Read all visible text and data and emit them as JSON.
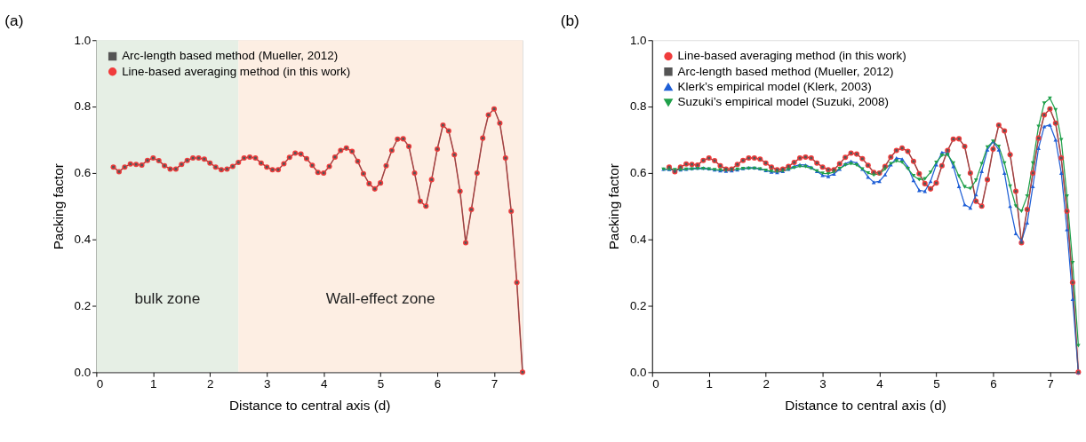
{
  "chart_data": [
    {
      "type": "line",
      "title": "(a)",
      "xlabel": "Distance to central axis (d)",
      "ylabel": "Packing factor",
      "xlim": [
        0,
        7.5
      ],
      "ylim": [
        0,
        1
      ],
      "xticks": [
        0,
        1,
        2,
        3,
        4,
        5,
        6,
        7
      ],
      "yticks": [
        {
          "value": 0,
          "label": "0.0"
        },
        {
          "value": 0.2,
          "label": "0.2"
        },
        {
          "value": 0.4,
          "label": "0.4"
        },
        {
          "value": 0.6,
          "label": "0.6"
        },
        {
          "value": 0.8,
          "label": "0.8"
        },
        {
          "value": 1,
          "label": "1.0"
        }
      ],
      "grid": false,
      "legend": "top left",
      "line_style": "solid",
      "x": [
        0.3,
        0.4,
        0.5,
        0.6,
        0.7,
        0.8,
        0.9,
        1.0,
        1.1,
        1.2,
        1.3,
        1.4,
        1.5,
        1.6,
        1.7,
        1.8,
        1.9,
        2.0,
        2.1,
        2.2,
        2.3,
        2.4,
        2.5,
        2.6,
        2.7,
        2.8,
        2.9,
        3.0,
        3.1,
        3.2,
        3.3,
        3.4,
        3.5,
        3.6,
        3.7,
        3.8,
        3.9,
        4.0,
        4.1,
        4.2,
        4.3,
        4.4,
        4.5,
        4.6,
        4.7,
        4.8,
        4.9,
        5.0,
        5.1,
        5.2,
        5.3,
        5.4,
        5.5,
        5.6,
        5.7,
        5.8,
        5.9,
        6.0,
        6.1,
        6.2,
        6.3,
        6.4,
        6.5,
        6.6,
        6.7,
        6.8,
        6.9,
        7.0,
        7.1,
        7.2,
        7.3,
        7.4,
        7.5
      ],
      "bands": [
        {
          "axis": "x",
          "from": 0,
          "to": 2.5,
          "label": "bulk zone",
          "color": "#e6efe5"
        },
        {
          "axis": "x",
          "from": 2.5,
          "to": 7.5,
          "label": "Wall-effect zone",
          "color": "#fdeee3"
        }
      ],
      "series": [
        {
          "name": "Arc-length based method (Mueller, 2012)",
          "color": "#555555",
          "marker": "square",
          "values": [
            0.618,
            0.604,
            0.618,
            0.627,
            0.626,
            0.624,
            0.638,
            0.645,
            0.637,
            0.622,
            0.612,
            0.612,
            0.626,
            0.638,
            0.645,
            0.645,
            0.642,
            0.63,
            0.618,
            0.61,
            0.612,
            0.62,
            0.632,
            0.645,
            0.648,
            0.645,
            0.63,
            0.618,
            0.61,
            0.61,
            0.628,
            0.647,
            0.66,
            0.657,
            0.643,
            0.623,
            0.602,
            0.6,
            0.62,
            0.648,
            0.668,
            0.675,
            0.665,
            0.635,
            0.598,
            0.568,
            0.552,
            0.57,
            0.622,
            0.668,
            0.702,
            0.703,
            0.68,
            0.6,
            0.515,
            0.5,
            0.58,
            0.672,
            0.744,
            0.727,
            0.655,
            0.545,
            0.39,
            0.49,
            0.6,
            0.705,
            0.775,
            0.793,
            0.75,
            0.645,
            0.485,
            0.27,
            0.0
          ]
        },
        {
          "name": "Line-based averaging method (in this work)",
          "color": "#f03c3c",
          "marker": "circle",
          "values": [
            0.618,
            0.604,
            0.618,
            0.627,
            0.626,
            0.624,
            0.638,
            0.645,
            0.637,
            0.622,
            0.612,
            0.612,
            0.626,
            0.638,
            0.645,
            0.645,
            0.642,
            0.63,
            0.618,
            0.61,
            0.612,
            0.62,
            0.632,
            0.645,
            0.648,
            0.645,
            0.63,
            0.618,
            0.61,
            0.61,
            0.628,
            0.647,
            0.66,
            0.657,
            0.643,
            0.623,
            0.602,
            0.6,
            0.62,
            0.648,
            0.668,
            0.675,
            0.665,
            0.635,
            0.598,
            0.568,
            0.552,
            0.57,
            0.622,
            0.668,
            0.702,
            0.703,
            0.68,
            0.6,
            0.515,
            0.5,
            0.58,
            0.672,
            0.744,
            0.727,
            0.655,
            0.545,
            0.39,
            0.49,
            0.6,
            0.705,
            0.775,
            0.793,
            0.75,
            0.645,
            0.485,
            0.27,
            0.0
          ]
        }
      ]
    },
    {
      "type": "line",
      "title": "(b)",
      "xlabel": "Distance to central axis (d)",
      "ylabel": "Packing factor",
      "xlim": [
        0,
        7.5
      ],
      "ylim": [
        0,
        1
      ],
      "xticks": [
        0,
        1,
        2,
        3,
        4,
        5,
        6,
        7
      ],
      "yticks": [
        {
          "value": 0,
          "label": "0.0"
        },
        {
          "value": 0.2,
          "label": "0.2"
        },
        {
          "value": 0.4,
          "label": "0.4"
        },
        {
          "value": 0.6,
          "label": "0.6"
        },
        {
          "value": 0.8,
          "label": "0.8"
        },
        {
          "value": 1,
          "label": "1.0"
        }
      ],
      "grid": false,
      "legend": "top left",
      "line_style": "solid",
      "x": [
        0.3,
        0.4,
        0.5,
        0.6,
        0.7,
        0.8,
        0.9,
        1.0,
        1.1,
        1.2,
        1.3,
        1.4,
        1.5,
        1.6,
        1.7,
        1.8,
        1.9,
        2.0,
        2.1,
        2.2,
        2.3,
        2.4,
        2.5,
        2.6,
        2.7,
        2.8,
        2.9,
        3.0,
        3.1,
        3.2,
        3.3,
        3.4,
        3.5,
        3.6,
        3.7,
        3.8,
        3.9,
        4.0,
        4.1,
        4.2,
        4.3,
        4.4,
        4.5,
        4.6,
        4.7,
        4.8,
        4.9,
        5.0,
        5.1,
        5.2,
        5.3,
        5.4,
        5.5,
        5.6,
        5.7,
        5.8,
        5.9,
        6.0,
        6.1,
        6.2,
        6.3,
        6.4,
        6.5,
        6.6,
        6.7,
        6.8,
        6.9,
        7.0,
        7.1,
        7.2,
        7.3,
        7.4,
        7.5
      ],
      "series": [
        {
          "name": "Line-based averaging method (in this work)",
          "color": "#f03c3c",
          "marker": "circle",
          "values": [
            0.618,
            0.604,
            0.618,
            0.627,
            0.626,
            0.624,
            0.638,
            0.645,
            0.637,
            0.622,
            0.612,
            0.612,
            0.626,
            0.638,
            0.645,
            0.645,
            0.642,
            0.63,
            0.618,
            0.61,
            0.612,
            0.62,
            0.632,
            0.645,
            0.648,
            0.645,
            0.63,
            0.618,
            0.61,
            0.61,
            0.628,
            0.647,
            0.66,
            0.657,
            0.643,
            0.623,
            0.602,
            0.6,
            0.62,
            0.648,
            0.668,
            0.675,
            0.665,
            0.635,
            0.598,
            0.568,
            0.552,
            0.57,
            0.622,
            0.668,
            0.702,
            0.703,
            0.68,
            0.6,
            0.515,
            0.5,
            0.58,
            0.672,
            0.744,
            0.727,
            0.655,
            0.545,
            0.39,
            0.49,
            0.6,
            0.705,
            0.775,
            0.793,
            0.75,
            0.645,
            0.485,
            0.27,
            0.0
          ]
        },
        {
          "name": "Arc-length based method (Mueller, 2012)",
          "color": "#555555",
          "marker": "square",
          "values": [
            0.618,
            0.604,
            0.618,
            0.627,
            0.626,
            0.624,
            0.638,
            0.645,
            0.637,
            0.622,
            0.612,
            0.612,
            0.626,
            0.638,
            0.645,
            0.645,
            0.642,
            0.63,
            0.618,
            0.61,
            0.612,
            0.62,
            0.632,
            0.645,
            0.648,
            0.645,
            0.63,
            0.618,
            0.61,
            0.61,
            0.628,
            0.647,
            0.66,
            0.657,
            0.643,
            0.623,
            0.602,
            0.6,
            0.62,
            0.648,
            0.668,
            0.675,
            0.665,
            0.635,
            0.598,
            0.568,
            0.552,
            0.57,
            0.622,
            0.668,
            0.702,
            0.703,
            0.68,
            0.6,
            0.515,
            0.5,
            0.58,
            0.672,
            0.744,
            0.727,
            0.655,
            0.545,
            0.39,
            0.49,
            0.6,
            0.705,
            0.775,
            0.793,
            0.75,
            0.645,
            0.485,
            0.27,
            0.0
          ]
        },
        {
          "name": "Klerk’s empirical model (Klerk, 2003)",
          "color": "#1f5fd6",
          "marker": "triangle",
          "x": [
            0.2,
            0.3,
            0.4,
            0.5,
            0.6,
            0.7,
            0.8,
            0.9,
            1.0,
            1.1,
            1.2,
            1.3,
            1.4,
            1.5,
            1.6,
            1.7,
            1.8,
            1.9,
            2.0,
            2.1,
            2.2,
            2.3,
            2.4,
            2.5,
            2.6,
            2.7,
            2.8,
            2.9,
            3.0,
            3.1,
            3.2,
            3.3,
            3.4,
            3.5,
            3.6,
            3.7,
            3.8,
            3.9,
            4.0,
            4.1,
            4.2,
            4.3,
            4.4,
            4.5,
            4.6,
            4.7,
            4.8,
            4.9,
            5.0,
            5.1,
            5.2,
            5.3,
            5.4,
            5.5,
            5.6,
            5.7,
            5.8,
            5.9,
            6.0,
            6.1,
            6.2,
            6.3,
            6.4,
            6.5,
            6.6,
            6.7,
            6.8,
            6.9,
            7.0,
            7.1,
            7.2,
            7.3,
            7.4,
            7.5
          ],
          "values": [
            0.612,
            0.611,
            0.609,
            0.61,
            0.612,
            0.614,
            0.615,
            0.615,
            0.613,
            0.61,
            0.607,
            0.606,
            0.607,
            0.61,
            0.614,
            0.616,
            0.616,
            0.613,
            0.608,
            0.603,
            0.602,
            0.605,
            0.612,
            0.62,
            0.625,
            0.624,
            0.617,
            0.605,
            0.593,
            0.59,
            0.597,
            0.612,
            0.628,
            0.635,
            0.63,
            0.612,
            0.588,
            0.572,
            0.575,
            0.595,
            0.625,
            0.645,
            0.642,
            0.618,
            0.578,
            0.548,
            0.545,
            0.575,
            0.625,
            0.662,
            0.66,
            0.62,
            0.56,
            0.505,
            0.495,
            0.535,
            0.605,
            0.67,
            0.695,
            0.67,
            0.6,
            0.5,
            0.418,
            0.395,
            0.45,
            0.56,
            0.675,
            0.74,
            0.745,
            0.7,
            0.6,
            0.43,
            0.22,
            0.0
          ]
        },
        {
          "name": "Suzuki’s empirical model (Suzuki, 2008)",
          "color": "#1fa04a",
          "marker": "triangle-down",
          "x": [
            0.2,
            0.3,
            0.4,
            0.5,
            0.6,
            0.7,
            0.8,
            0.9,
            1.0,
            1.1,
            1.2,
            1.3,
            1.4,
            1.5,
            1.6,
            1.7,
            1.8,
            1.9,
            2.0,
            2.1,
            2.2,
            2.3,
            2.4,
            2.5,
            2.6,
            2.7,
            2.8,
            2.9,
            3.0,
            3.1,
            3.2,
            3.3,
            3.4,
            3.5,
            3.6,
            3.7,
            3.8,
            3.9,
            4.0,
            4.1,
            4.2,
            4.3,
            4.4,
            4.5,
            4.6,
            4.7,
            4.8,
            4.9,
            5.0,
            5.1,
            5.2,
            5.3,
            5.4,
            5.5,
            5.6,
            5.7,
            5.8,
            5.9,
            6.0,
            6.1,
            6.2,
            6.3,
            6.4,
            6.5,
            6.6,
            6.7,
            6.8,
            6.9,
            7.0,
            7.1,
            7.2,
            7.3,
            7.4,
            7.5
          ],
          "values": [
            0.611,
            0.611,
            0.61,
            0.61,
            0.611,
            0.612,
            0.613,
            0.613,
            0.612,
            0.61,
            0.609,
            0.608,
            0.609,
            0.611,
            0.613,
            0.614,
            0.614,
            0.612,
            0.608,
            0.605,
            0.604,
            0.606,
            0.611,
            0.616,
            0.62,
            0.619,
            0.614,
            0.606,
            0.599,
            0.598,
            0.603,
            0.613,
            0.624,
            0.628,
            0.624,
            0.612,
            0.6,
            0.594,
            0.598,
            0.612,
            0.628,
            0.636,
            0.632,
            0.613,
            0.592,
            0.58,
            0.582,
            0.602,
            0.632,
            0.653,
            0.655,
            0.63,
            0.59,
            0.558,
            0.553,
            0.578,
            0.628,
            0.678,
            0.695,
            0.68,
            0.63,
            0.56,
            0.5,
            0.485,
            0.53,
            0.63,
            0.74,
            0.81,
            0.825,
            0.79,
            0.7,
            0.53,
            0.33,
            0.08
          ]
        }
      ]
    }
  ]
}
